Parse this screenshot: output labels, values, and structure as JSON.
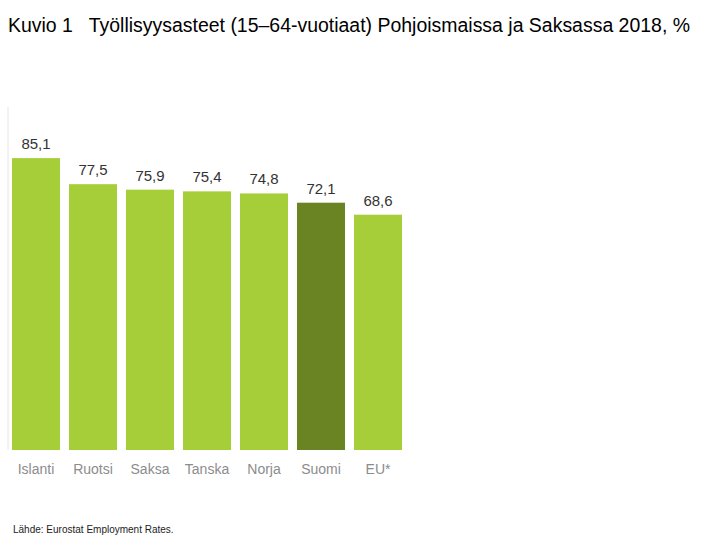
{
  "chart_data": {
    "type": "bar",
    "title": "Kuvio 1   Työllisyysasteet (15–64-vuotiaat) Pohjoismaissa ja Saksassa 2018, %",
    "source": "Lähde: Eurostat Employment Rates.",
    "categories": [
      "Islanti",
      "Ruotsi",
      "Saksa",
      "Tanska",
      "Norja",
      "Suomi",
      "EU*"
    ],
    "values": [
      85.1,
      77.5,
      75.9,
      75.4,
      74.8,
      72.1,
      68.6
    ],
    "value_labels": [
      "85,1",
      "77,5",
      "75,9",
      "75,4",
      "74,8",
      "72,1",
      "68,6"
    ],
    "colors": [
      "#a6ce39",
      "#a6ce39",
      "#a6ce39",
      "#a6ce39",
      "#a6ce39",
      "#6b8423",
      "#a6ce39"
    ],
    "ylim": [
      0,
      100
    ],
    "grid": false,
    "data_labels": true,
    "tick_labels": "x"
  }
}
